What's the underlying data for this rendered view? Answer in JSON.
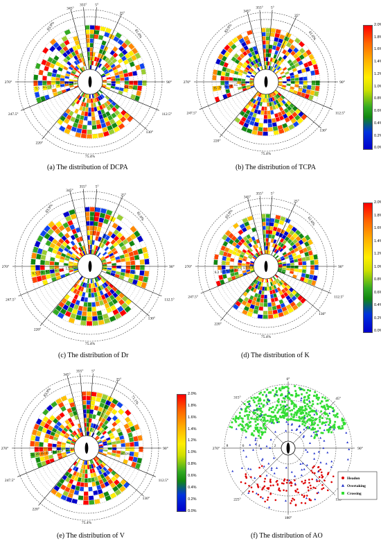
{
  "colorbar": {
    "ticks": [
      "2.0%",
      "1.8%",
      "1.6%",
      "1.4%",
      "1.2%",
      "1.0%",
      "0.8%",
      "0.6%",
      "0.4%",
      "0.2%",
      "0.0%"
    ],
    "palette": [
      "#0000cc",
      "#1144ee",
      "#118811",
      "#33aa22",
      "#9acd32",
      "#ffee00",
      "#ffc000",
      "#ff8800",
      "#ff4400",
      "#ff0000"
    ]
  },
  "panels": [
    {
      "key": "a",
      "caption": "(a)  The distribution of DCPA",
      "mode": "radial",
      "angles": [
        "355°",
        "5°",
        "25°",
        "345°",
        "270°",
        "90°",
        "247.5°",
        "112.5°",
        "220°",
        "130°"
      ],
      "percents": [
        "83.9%",
        "81.0%",
        "75.4%",
        "94.7%"
      ],
      "scale": [
        "0.5",
        "1.5",
        "2.5",
        "3.5",
        "4.5",
        "5.5"
      ]
    },
    {
      "key": "b",
      "caption": "(b)  The distribution of TCPA",
      "mode": "radial",
      "angles": [
        "355°",
        "5°",
        "25°",
        "345°",
        "270°",
        "90°",
        "247.5°",
        "112.5°",
        "220°",
        "130°"
      ],
      "percents": [
        "83.9%",
        "61.6%",
        "75.4%",
        "85.5%"
      ],
      "scale": [
        "0",
        "5",
        "10",
        "15",
        "20",
        "25",
        "30",
        "35"
      ]
    },
    {
      "key": "c",
      "caption": "(c)  The distribution of Dr",
      "mode": "radial",
      "angles": [
        "355°",
        "5°",
        "25°",
        "345°",
        "270°",
        "90°",
        "247.5°",
        "112.5°",
        "220°",
        "130°"
      ],
      "percents": [
        "83.9%",
        "81.0%",
        "75.4%",
        "87.5%"
      ],
      "scale": [
        "0.5",
        "1.5",
        "2.5",
        "3.5",
        "4.5",
        "5.5",
        "6.5"
      ]
    },
    {
      "key": "d",
      "caption": "(d)  The distribution of K",
      "mode": "radial",
      "angles": [
        "355°",
        "5°",
        "25°",
        "345°",
        "270°",
        "90°",
        "247.5°",
        "112.5°",
        "220°",
        "130°"
      ],
      "percents": [
        "83.9%",
        "61.6%",
        "75.4%"
      ],
      "scale": [
        "0.3",
        "1.3",
        "2.3",
        "3.3",
        "4.3",
        "5.3",
        "6.3"
      ]
    },
    {
      "key": "e",
      "caption": "(e)  The distribution of V",
      "mode": "radial",
      "angles": [
        "355°",
        "5°",
        "25°",
        "345°",
        "270°",
        "90°",
        "247.5°",
        "112.5°",
        "220°",
        "130°"
      ],
      "percents": [
        "83.9%",
        "71.1%",
        "75.4%",
        "87.0%"
      ],
      "scale": [
        "1",
        "5",
        "9",
        "13",
        "17",
        "21",
        "25",
        "29",
        "33"
      ]
    },
    {
      "key": "f",
      "caption": "(f)  The distribution of AO",
      "mode": "scatter",
      "angles": [
        "0°",
        "45°",
        "90°",
        "135°",
        "180°",
        "225°",
        "270°",
        "315°"
      ],
      "scale": [
        "8",
        "6",
        "4",
        "2"
      ],
      "legend": [
        {
          "label": "Headon",
          "color": "#dd0000",
          "marker": "circle"
        },
        {
          "label": "Overtaking",
          "color": "#2233cc",
          "marker": "triangle"
        },
        {
          "label": "Crossing",
          "color": "#33dd33",
          "marker": "square"
        }
      ]
    }
  ]
}
